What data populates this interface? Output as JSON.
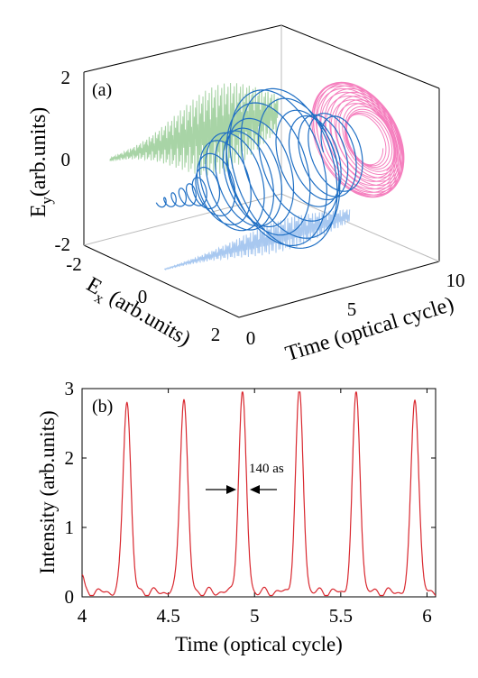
{
  "panel_a": {
    "label": "(a)",
    "ylabel": "E",
    "ylabel_sub": "y",
    "ylabel_rest": "(arb.units)",
    "xlabel": "Time (optical cycle)",
    "zlabel": "E",
    "zlabel_sub": "x",
    "zlabel_rest": " (arb.units)",
    "ey_ticks": [
      "2",
      "0",
      "-2"
    ],
    "ex_ticks": [
      "-2",
      "0",
      "2"
    ],
    "time_ticks": [
      "0",
      "5",
      "10"
    ],
    "colors": {
      "main_3d": "#1f6fc4",
      "projection_ey": "#a8d4a6",
      "projection_ex": "#a8c8f0",
      "projection_polarization": "#f57fbe"
    }
  },
  "panel_b": {
    "label": "(b)",
    "ylabel": "Intensity (arb.units)",
    "xlabel": "Time (optical cycle)",
    "annotation": "140 as",
    "color": "#d9282f"
  },
  "chart_data": [
    {
      "type": "line",
      "title": "",
      "xlabel": "Time (optical cycle)",
      "ylabel": "E_y (arb.units)",
      "zlabel": "E_x (arb.units)",
      "xlim": [
        0,
        10
      ],
      "ylim": [
        -2,
        2
      ],
      "zlim": [
        -2,
        2
      ],
      "xticks": [
        0,
        5,
        10
      ],
      "yticks": [
        -2,
        0,
        2
      ],
      "zticks": [
        -2,
        0,
        2
      ],
      "series": [
        {
          "style": "3d-helix",
          "envelope_center": 6.5,
          "envelope_width": 3.5,
          "amplitude": 1.6,
          "cycles": 22
        },
        {
          "style": "projection-on-Ey-time-plane"
        },
        {
          "style": "projection-on-Ex-time-plane"
        },
        {
          "style": "projection-on-Ex-Ey-plane"
        }
      ]
    },
    {
      "type": "line",
      "title": "",
      "xlabel": "Time (optical cycle)",
      "ylabel": "Intensity (arb.units)",
      "xlim": [
        4,
        6.05
      ],
      "ylim": [
        0,
        3
      ],
      "xticks": [
        4,
        4.5,
        5,
        5.5,
        6
      ],
      "yticks": [
        0,
        1,
        2,
        3
      ],
      "series": [
        {
          "peaks_x": [
            4.26,
            4.59,
            4.93,
            5.26,
            5.59,
            5.93
          ],
          "peaks_y": [
            2.78,
            2.8,
            2.84,
            2.87,
            2.85,
            2.82
          ],
          "fwhm_as": 140
        }
      ],
      "annotations": [
        {
          "text": "140 as",
          "x": 4.93,
          "y": 1.35
        }
      ]
    }
  ]
}
